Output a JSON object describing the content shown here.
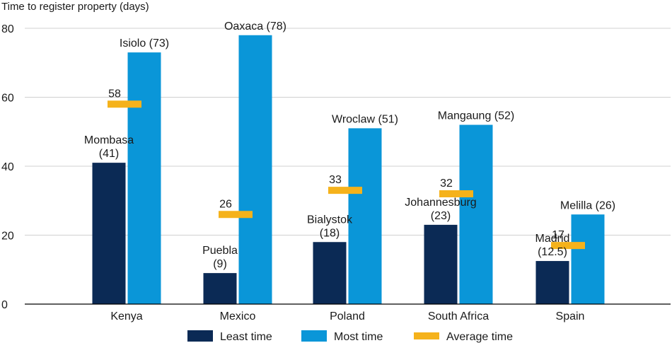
{
  "chart_data": {
    "type": "bar",
    "ylabel": "Time to register property (days)",
    "ylim": [
      0,
      80
    ],
    "yticks": [
      0,
      20,
      40,
      60,
      80
    ],
    "grid": true,
    "legend_position": "bottom",
    "categories": [
      "Kenya",
      "Mexico",
      "Poland",
      "South Africa",
      "Spain"
    ],
    "series": [
      {
        "name": "Least time",
        "color": "#0b2a55",
        "values": [
          41,
          9,
          18,
          23,
          12.5
        ],
        "labels": [
          [
            "Mombasa",
            "(41)"
          ],
          [
            "Puebla",
            "(9)"
          ],
          [
            "Bialystok",
            "(18)"
          ],
          [
            "Johannesburg",
            "(23)"
          ],
          [
            "Madrid",
            "(12.5)"
          ]
        ]
      },
      {
        "name": "Most time",
        "color": "#0a96d8",
        "values": [
          73,
          78,
          51,
          52,
          26
        ],
        "labels": [
          [
            "Isiolo (73)"
          ],
          [
            "Oaxaca (78)"
          ],
          [
            "Wroclaw (51)"
          ],
          [
            "Mangaung (52)"
          ],
          [
            "Melilla (26)"
          ]
        ]
      },
      {
        "name": "Average time",
        "color": "#f5b21b",
        "values": [
          58,
          26,
          33,
          32,
          17
        ],
        "labels": [
          [
            "58"
          ],
          [
            "26"
          ],
          [
            "33"
          ],
          [
            "32"
          ],
          [
            "17"
          ]
        ]
      }
    ]
  }
}
